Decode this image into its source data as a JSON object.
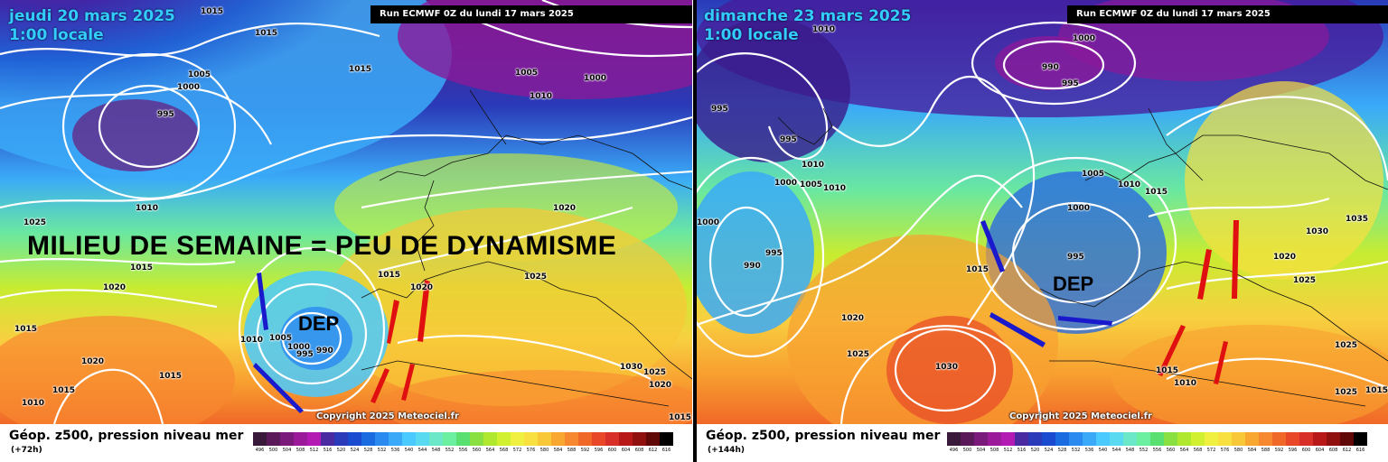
{
  "panels": [
    {
      "date_line1": "jeudi 20 mars 2025",
      "date_line2": "1:00 locale",
      "run_label": "Run ECMWF 0Z du lundi 17 mars 2025",
      "copyright": "Copyright 2025 Meteociel.fr",
      "footer_title": "Géop. z500, pression niveau mer",
      "footer_sub": "(+72h)",
      "headline": "MILIEU DE SEMAINE = PEU DE DYNAMISME",
      "dep_label": "DEP",
      "isobars": [
        "1015",
        "1015",
        "1005",
        "1000",
        "995",
        "1015",
        "1005",
        "1010",
        "1000",
        "1010",
        "1025",
        "1015",
        "1020",
        "1015",
        "1020",
        "1015",
        "1010",
        "1015",
        "1020",
        "1010",
        "1005",
        "1000",
        "995",
        "990",
        "1015",
        "1020",
        "1025",
        "1030",
        "1025",
        "1020",
        "1015"
      ]
    },
    {
      "date_line1": "dimanche 23 mars 2025",
      "date_line2": "1:00 locale",
      "run_label": "Run ECMWF 0Z du lundi 17 mars 2025",
      "copyright": "Copyright 2025 Meteociel.fr",
      "footer_title": "Géop. z500, pression niveau mer",
      "footer_sub": "(+144h)",
      "dep_label": "DEP",
      "isobars": [
        "1010",
        "1000",
        "990",
        "995",
        "995",
        "995",
        "1010",
        "1000",
        "1005",
        "1010",
        "1005",
        "1010",
        "1015",
        "1000",
        "995",
        "990",
        "1015",
        "1000",
        "995",
        "1020",
        "1025",
        "1030",
        "1035",
        "1030",
        "1020",
        "1025",
        "1025",
        "1015",
        "1010",
        "1025",
        "1015"
      ]
    }
  ],
  "colorbar": {
    "ticks": [
      "496",
      "500",
      "504",
      "508",
      "512",
      "516",
      "520",
      "524",
      "528",
      "532",
      "536",
      "540",
      "544",
      "548",
      "552",
      "556",
      "560",
      "564",
      "568",
      "572",
      "576",
      "580",
      "584",
      "588",
      "592",
      "596",
      "600",
      "604",
      "608",
      "612",
      "616"
    ],
    "colors": [
      "#3a1a3a",
      "#5a1a5a",
      "#7a1a7a",
      "#9a1a9a",
      "#b31ab3",
      "#4a2aa0",
      "#2a3ab8",
      "#1a4ad0",
      "#1a6ae0",
      "#2a8af0",
      "#3aaaf8",
      "#4acaff",
      "#5adaf0",
      "#6ae8c8",
      "#6af0a0",
      "#5ae070",
      "#8ae040",
      "#b0e830",
      "#d0f030",
      "#f0f040",
      "#f8e040",
      "#f8c838",
      "#f8a830",
      "#f88830",
      "#f06828",
      "#e84828",
      "#d83028",
      "#b81818",
      "#901010",
      "#600808",
      "#000000"
    ]
  },
  "arrows": {
    "blue": "#1a1acc",
    "red": "#e01010"
  }
}
